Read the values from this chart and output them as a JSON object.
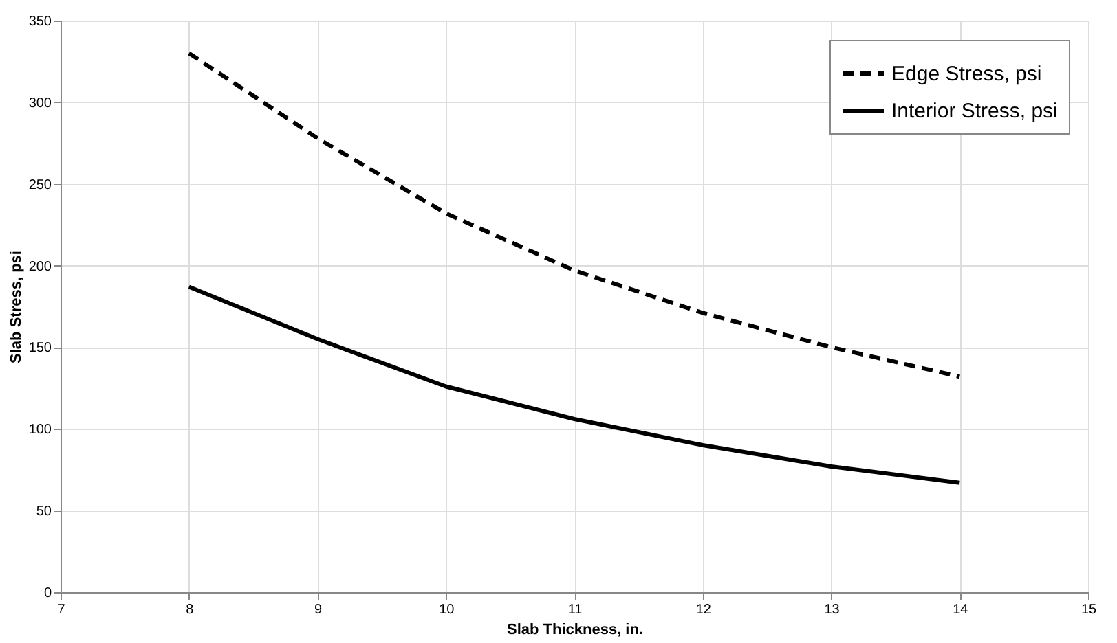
{
  "chart_data": {
    "type": "line",
    "xlabel": "Slab Thickness, in.",
    "ylabel": "Slab Stress, psi",
    "xlim": [
      7,
      15
    ],
    "xticks": [
      7,
      8,
      9,
      10,
      11,
      12,
      13,
      14,
      15
    ],
    "ylim": [
      0,
      350
    ],
    "yticks": [
      0,
      50,
      100,
      150,
      200,
      250,
      300,
      350
    ],
    "grid": true,
    "legend": "top right",
    "marker": "none",
    "series": [
      {
        "name": "Edge Stress, psi",
        "color": "#000000",
        "line_style": "dashed",
        "x": [
          8,
          9,
          10,
          11,
          12,
          13,
          14
        ],
        "values": [
          330,
          278,
          232,
          197,
          171,
          150,
          132
        ]
      },
      {
        "name": "Interior Stress, psi",
        "color": "#000000",
        "line_style": "solid",
        "x": [
          8,
          9,
          10,
          11,
          12,
          13,
          14
        ],
        "values": [
          187,
          155,
          126,
          106,
          90,
          77,
          67
        ]
      }
    ]
  }
}
